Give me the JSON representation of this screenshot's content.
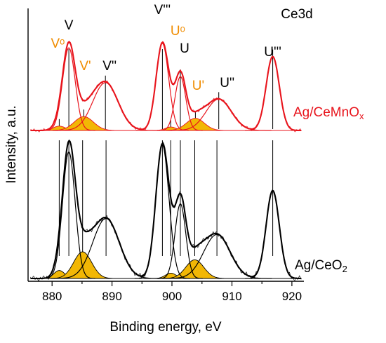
{
  "chart_data": {
    "type": "line",
    "panel_label": "Ce3d",
    "xlabel": "Binding energy, eV",
    "ylabel": "Intensity, a.u.",
    "xlim": [
      876,
      922
    ],
    "x_ticks": [
      880,
      890,
      900,
      910,
      920
    ],
    "y_ticks": "none",
    "grid": false,
    "colors": {
      "ag_cemnox": "#e8141c",
      "ag_ceo2": "#000000",
      "satellite_fill": "#f2b705",
      "orange_label": "#f08c00"
    },
    "series": [
      {
        "name": "Ag/CeMnOx",
        "name_main": "Ag/CeMnO",
        "name_sub": "x",
        "color": "#e8141c",
        "components": [
          {
            "label": "Vᵒ",
            "center": 881.2,
            "height": 0.05,
            "width": 1.0,
            "filled": true,
            "label_color": "orange"
          },
          {
            "label": "V",
            "center": 882.8,
            "height": 0.95,
            "width": 1.05,
            "filled": false,
            "label_color": "black"
          },
          {
            "label": "V'",
            "center": 885.3,
            "height": 0.16,
            "width": 1.6,
            "filled": true,
            "label_color": "orange"
          },
          {
            "label": "V''",
            "center": 888.9,
            "height": 0.55,
            "width": 2.1,
            "filled": false,
            "label_color": "black"
          },
          {
            "label": "V'''",
            "center": 898.4,
            "height": 1.0,
            "width": 1.05,
            "filled": false,
            "label_color": "black"
          },
          {
            "label": "Uᵒ",
            "center": 899.8,
            "height": 0.04,
            "width": 0.9,
            "filled": true,
            "label_color": "orange"
          },
          {
            "label": "U",
            "center": 901.4,
            "height": 0.62,
            "width": 0.9,
            "filled": false,
            "label_color": "black"
          },
          {
            "label": "U'",
            "center": 903.9,
            "height": 0.14,
            "width": 1.5,
            "filled": true,
            "label_color": "orange"
          },
          {
            "label": "U''",
            "center": 907.8,
            "height": 0.36,
            "width": 2.1,
            "filled": false,
            "label_color": "black"
          },
          {
            "label": "U'''",
            "center": 916.8,
            "height": 0.85,
            "width": 1.1,
            "filled": false,
            "label_color": "black"
          }
        ]
      },
      {
        "name": "Ag/CeO2",
        "name_main": "Ag/CeO",
        "name_sub": "2",
        "color": "#000000",
        "components": [
          {
            "label": "Vᵒ",
            "center": 881.2,
            "height": 0.06,
            "width": 0.9,
            "filled": true
          },
          {
            "label": "V",
            "center": 882.8,
            "height": 0.95,
            "width": 1.05,
            "filled": false
          },
          {
            "label": "V'",
            "center": 885.1,
            "height": 0.2,
            "width": 1.5,
            "filled": true
          },
          {
            "label": "V''",
            "center": 889.0,
            "height": 0.45,
            "width": 2.2,
            "filled": false
          },
          {
            "label": "V'''",
            "center": 898.4,
            "height": 1.0,
            "width": 1.1,
            "filled": false
          },
          {
            "label": "Uᵒ",
            "center": 899.8,
            "height": 0.04,
            "width": 0.9,
            "filled": true
          },
          {
            "label": "U",
            "center": 901.4,
            "height": 0.56,
            "width": 0.9,
            "filled": false
          },
          {
            "label": "U'",
            "center": 903.8,
            "height": 0.14,
            "width": 1.5,
            "filled": true
          },
          {
            "label": "U''",
            "center": 907.5,
            "height": 0.33,
            "width": 2.2,
            "filled": false
          },
          {
            "label": "U'''",
            "center": 916.8,
            "height": 0.66,
            "width": 1.1,
            "filled": false
          }
        ]
      }
    ]
  }
}
